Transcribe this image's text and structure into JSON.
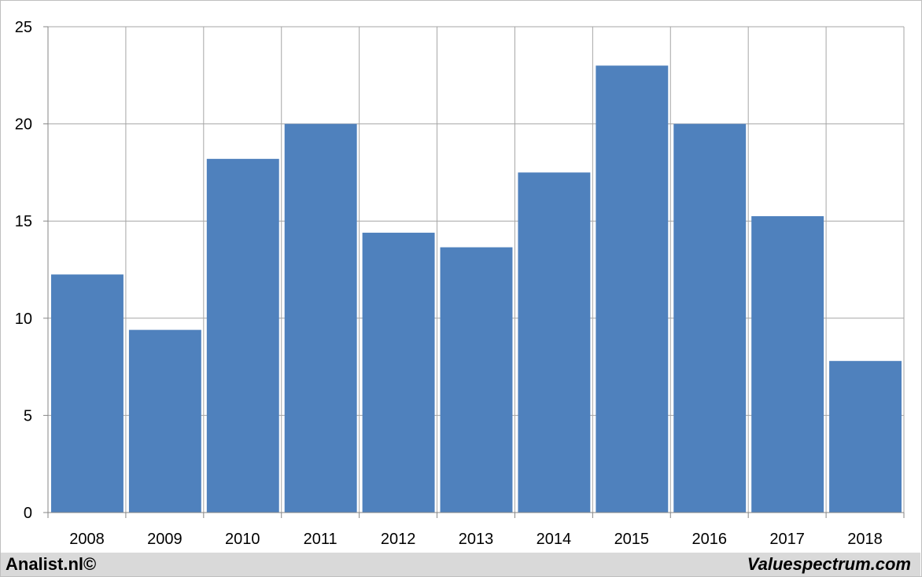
{
  "chart_data": {
    "type": "bar",
    "title": "",
    "xlabel": "",
    "ylabel": "",
    "categories": [
      "2008",
      "2009",
      "2010",
      "2011",
      "2012",
      "2013",
      "2014",
      "2015",
      "2016",
      "2017",
      "2018"
    ],
    "values": [
      12.25,
      9.4,
      18.2,
      20.0,
      14.4,
      13.65,
      17.5,
      23.0,
      20.0,
      15.25,
      7.8
    ],
    "ylim": [
      0,
      25
    ],
    "yticks": [
      "0",
      "5",
      "10",
      "15",
      "20",
      "25"
    ],
    "grid": true,
    "legend": "none",
    "bar_color": "#4f81bd",
    "grid_color": "#a6a6a6"
  },
  "footer": {
    "left_text": "Analist.nl©",
    "right_text": "Valuespectrum.com",
    "background": "#d9d9d9"
  }
}
